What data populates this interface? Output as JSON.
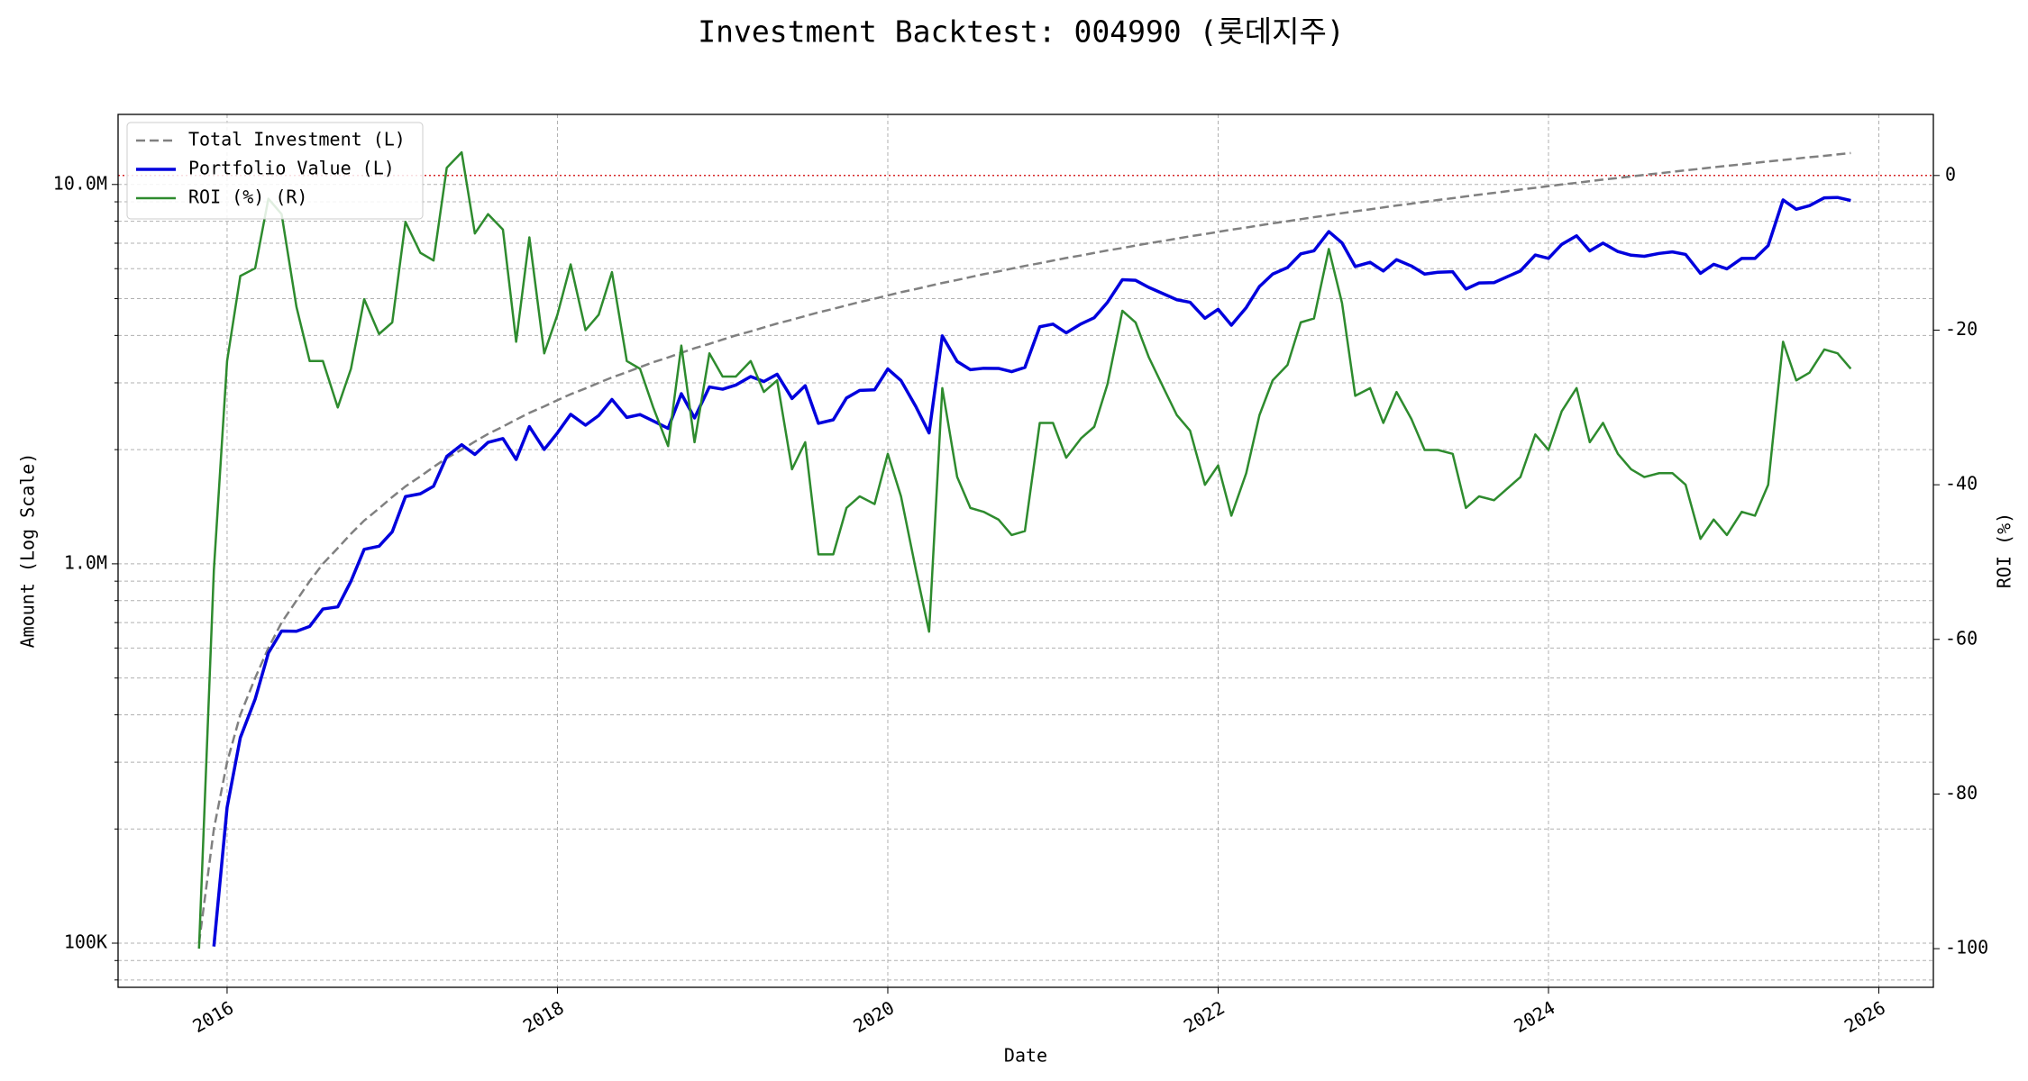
{
  "chart_data": {
    "type": "line",
    "title": "Investment Backtest: 004990 (롯데지주)",
    "xlabel": "Date",
    "ylabel": "Amount (Log Scale)",
    "y2label": "ROI (%)",
    "ylabel_color": "#0000cc",
    "y2label_color": "#228b22",
    "yscale": "log",
    "grid": true,
    "legend": "upper left",
    "xlim": [
      2015.34,
      2026.33
    ],
    "xticks": [
      2016,
      2018,
      2020,
      2022,
      2024,
      2026
    ],
    "ylim": [
      76500,
      15300000
    ],
    "yticks": [
      {
        "value": 100000,
        "label": "100K"
      },
      {
        "value": 1000000,
        "label": "1.0M"
      },
      {
        "value": 10000000,
        "label": "10.0M"
      }
    ],
    "y_minor_ticks": [
      80000,
      90000,
      200000,
      300000,
      400000,
      500000,
      600000,
      700000,
      800000,
      900000,
      2000000,
      3000000,
      4000000,
      5000000,
      6000000,
      7000000,
      8000000,
      9000000
    ],
    "y2lim": [
      -105,
      7.9
    ],
    "y2ticks": [
      -100,
      -80,
      -60,
      -40,
      -20,
      0
    ],
    "reference_line": {
      "value": 0,
      "axis": "y2",
      "color": "#d62728"
    },
    "x": [
      2015.83,
      2015.92,
      2016.0,
      2016.08,
      2016.17,
      2016.25,
      2016.33,
      2016.42,
      2016.5,
      2016.58,
      2016.67,
      2016.75,
      2016.83,
      2016.92,
      2017.0,
      2017.08,
      2017.17,
      2017.25,
      2017.33,
      2017.42,
      2017.5,
      2017.58,
      2017.67,
      2017.75,
      2017.83,
      2017.92,
      2018.0,
      2018.08,
      2018.17,
      2018.25,
      2018.33,
      2018.42,
      2018.5,
      2018.58,
      2018.67,
      2018.75,
      2018.83,
      2018.92,
      2019.0,
      2019.08,
      2019.17,
      2019.25,
      2019.33,
      2019.42,
      2019.5,
      2019.58,
      2019.67,
      2019.75,
      2019.83,
      2019.92,
      2020.0,
      2020.08,
      2020.17,
      2020.25,
      2020.33,
      2020.42,
      2020.5,
      2020.58,
      2020.67,
      2020.75,
      2020.83,
      2020.92,
      2021.0,
      2021.08,
      2021.17,
      2021.25,
      2021.33,
      2021.42,
      2021.5,
      2021.58,
      2021.67,
      2021.75,
      2021.83,
      2021.92,
      2022.0,
      2022.08,
      2022.17,
      2022.25,
      2022.33,
      2022.42,
      2022.5,
      2022.58,
      2022.67,
      2022.75,
      2022.83,
      2022.92,
      2023.0,
      2023.08,
      2023.17,
      2023.25,
      2023.33,
      2023.42,
      2023.5,
      2023.58,
      2023.67,
      2023.75,
      2023.83,
      2023.92,
      2024.0,
      2024.08,
      2024.17,
      2024.25,
      2024.33,
      2024.42,
      2024.5,
      2024.58,
      2024.67,
      2024.75,
      2024.83,
      2024.92,
      2025.0,
      2025.08,
      2025.17,
      2025.25,
      2025.33,
      2025.42,
      2025.5,
      2025.58,
      2025.67,
      2025.75,
      2025.83
    ],
    "series": [
      {
        "name": "Total Investment (L)",
        "color": "#808080",
        "style": "dashed",
        "width": 2.5,
        "axis": "y",
        "values": [
          100000,
          200000,
          300000,
          400000,
          500000,
          600000,
          700000,
          800000,
          900000,
          1000000,
          1100000,
          1200000,
          1300000,
          1400000,
          1500000,
          1600000,
          1700000,
          1800000,
          1900000,
          2000000,
          2100000,
          2200000,
          2300000,
          2400000,
          2500000,
          2600000,
          2700000,
          2800000,
          2900000,
          3000000,
          3100000,
          3200000,
          3300000,
          3400000,
          3500000,
          3600000,
          3700000,
          3800000,
          3900000,
          4000000,
          4100000,
          4200000,
          4300000,
          4400000,
          4500000,
          4600000,
          4700000,
          4800000,
          4900000,
          5000000,
          5100000,
          5200000,
          5300000,
          5400000,
          5500000,
          5600000,
          5700000,
          5800000,
          5900000,
          6000000,
          6100000,
          6200000,
          6300000,
          6400000,
          6500000,
          6600000,
          6700000,
          6800000,
          6900000,
          7000000,
          7100000,
          7200000,
          7300000,
          7400000,
          7500000,
          7600000,
          7700000,
          7800000,
          7900000,
          8000000,
          8100000,
          8200000,
          8300000,
          8400000,
          8500000,
          8600000,
          8700000,
          8800000,
          8900000,
          9000000,
          9100000,
          9200000,
          9300000,
          9400000,
          9500000,
          9600000,
          9700000,
          9800000,
          9900000,
          10000000,
          10100000,
          10200000,
          10300000,
          10400000,
          10500000,
          10600000,
          10700000,
          10800000,
          10900000,
          11000000,
          11100000,
          11200000,
          11300000,
          11400000,
          11500000,
          11600000,
          11700000,
          11800000,
          11900000,
          12000000,
          12100000
        ]
      },
      {
        "name": "Portfolio Value (L)",
        "color": "#0000dd",
        "style": "solid",
        "width": 3.5,
        "axis": "y",
        "values": [
          null,
          98000,
          228000,
          348000,
          440000,
          582000,
          665000,
          664000,
          684000,
          760000,
          770000,
          900000,
          1092000,
          1113000,
          1215000,
          1504000,
          1530000,
          1602000,
          1919000,
          2060000,
          1942000,
          2090000,
          2139000,
          1884000,
          2300000,
          2002000,
          2214000,
          2478000,
          2320000,
          2460000,
          2712000,
          2432000,
          2475000,
          2380000,
          2275000,
          2808000,
          2424000,
          2926000,
          2886000,
          2960000,
          3116000,
          3024000,
          3160000,
          2728000,
          2948000,
          2346000,
          2397000,
          2736000,
          2866000,
          2875000,
          3264000,
          3042000,
          2597000,
          2214000,
          3988000,
          3416000,
          3249000,
          3277000,
          3274000,
          3210000,
          3294000,
          4216000,
          4284000,
          4064000,
          4290000,
          4455000,
          4891000,
          5610000,
          5589000,
          5355000,
          5148000,
          4968000,
          4891000,
          4440000,
          4688000,
          4256000,
          4736000,
          5382000,
          5806000,
          6040000,
          6561000,
          6683000,
          7512000,
          7014000,
          6078000,
          6235000,
          5916000,
          6336000,
          6096000,
          5805000,
          5870000,
          5888000,
          5301000,
          5499000,
          5510000,
          5712000,
          5917000,
          6517000,
          6386000,
          6950000,
          7322000,
          6681000,
          7004000,
          6656000,
          6510000,
          6466000,
          6580000,
          6642000,
          6540000,
          5830000,
          6160000,
          5992000,
          6384000,
          6384000,
          6900000,
          9106000,
          8600000,
          8791000,
          9222000,
          9240000,
          9075000
        ]
      },
      {
        "name": "ROI (%) (R)",
        "color": "#2e8b2e",
        "style": "solid",
        "width": 2.5,
        "axis": "y2",
        "values": [
          -100,
          -51,
          -24,
          -13,
          -12,
          -3,
          -5,
          -17,
          -24,
          -24,
          -30,
          -25,
          -16,
          -20.5,
          -19,
          -6,
          -10,
          -11,
          1,
          3,
          -7.5,
          -5,
          -7,
          -21.5,
          -8,
          -23,
          -18,
          -11.5,
          -20,
          -18,
          -12.5,
          -24,
          -25,
          -30,
          -35,
          -22,
          -34.5,
          -23,
          -26,
          -26,
          -24,
          -28,
          -26.5,
          -38,
          -34.5,
          -49,
          -49,
          -43,
          -41.5,
          -42.5,
          -36,
          -41.5,
          -51,
          -59,
          -27.5,
          -39,
          -43,
          -43.5,
          -44.5,
          -46.5,
          -46,
          -32,
          -32,
          -36.5,
          -34,
          -32.5,
          -27,
          -17.5,
          -19,
          -23.5,
          -27.5,
          -31,
          -33,
          -40,
          -37.5,
          -44,
          -38.5,
          -31,
          -26.5,
          -24.5,
          -19,
          -18.5,
          -9.5,
          -16.5,
          -28.5,
          -27.5,
          -32,
          -28,
          -31.5,
          -35.5,
          -35.5,
          -36,
          -43,
          -41.5,
          -42,
          -40.5,
          -39,
          -33.5,
          -35.5,
          -30.5,
          -27.5,
          -34.5,
          -32,
          -36,
          -38,
          -39,
          -38.5,
          -38.5,
          -40,
          -47,
          -44.5,
          -46.5,
          -43.5,
          -44,
          -40,
          -21.5,
          -26.5,
          -25.5,
          -22.5,
          -23,
          -25
        ]
      }
    ]
  }
}
